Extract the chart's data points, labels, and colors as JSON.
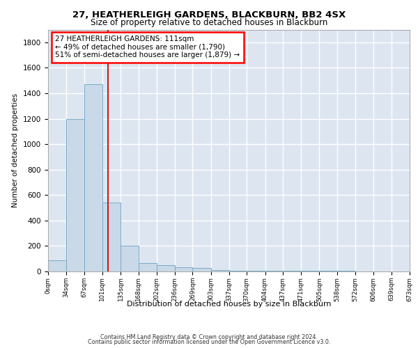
{
  "title1": "27, HEATHERLEIGH GARDENS, BLACKBURN, BB2 4SX",
  "title2": "Size of property relative to detached houses in Blackburn",
  "xlabel": "Distribution of detached houses by size in Blackburn",
  "ylabel": "Number of detached properties",
  "footer1": "Contains HM Land Registry data © Crown copyright and database right 2024.",
  "footer2": "Contains public sector information licensed under the Open Government Licence v3.0.",
  "annotation_title": "27 HEATHERLEIGH GARDENS: 111sqm",
  "annotation_line1": "← 49% of detached houses are smaller (1,790)",
  "annotation_line2": "51% of semi-detached houses are larger (1,879) →",
  "property_sqm": 111,
  "bin_edges": [
    0,
    34,
    67,
    101,
    135,
    168,
    202,
    236,
    269,
    303,
    337,
    370,
    404,
    437,
    471,
    505,
    538,
    572,
    606,
    639,
    673
  ],
  "bar_heights": [
    90,
    1200,
    1470,
    540,
    205,
    65,
    48,
    35,
    28,
    10,
    8,
    6,
    5,
    5,
    5,
    4,
    3,
    2,
    2,
    1
  ],
  "bar_color": "#c9d9e8",
  "bar_edge_color": "#7aaac8",
  "vline_color": "#cc0000",
  "background_color": "#dde6f0",
  "grid_color": "#ffffff",
  "ylim": [
    0,
    1900
  ],
  "yticks": [
    0,
    200,
    400,
    600,
    800,
    1000,
    1200,
    1400,
    1600,
    1800
  ]
}
